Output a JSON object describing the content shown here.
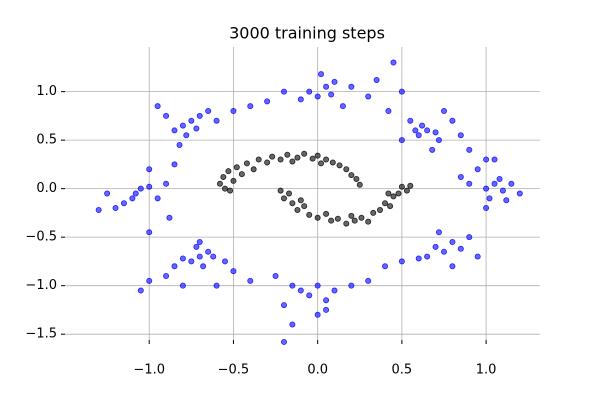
{
  "chart_data": {
    "type": "scatter",
    "title": "3000 training steps",
    "xlim": [
      -1.5,
      1.32
    ],
    "ylim": [
      -1.56,
      1.46
    ],
    "xticks": [
      {
        "value": -1,
        "label": "−1.0"
      },
      {
        "value": -0.5,
        "label": "−0.5"
      },
      {
        "value": 0,
        "label": "0.0"
      },
      0.5,
      {
        "value": 1,
        "label": "1.0"
      }
    ],
    "yticks": [
      {
        "value": -1.5,
        "label": "−1.5"
      },
      {
        "value": -1,
        "label": "−1.0"
      },
      {
        "value": -0.5,
        "label": "−0.5"
      },
      {
        "value": 0,
        "label": "0.0"
      },
      0.5,
      {
        "value": 1,
        "label": "1.0"
      }
    ],
    "grid": true,
    "series": [
      {
        "color": "#000000",
        "x": [
          -0.58,
          -0.56,
          -0.55,
          -0.53,
          -0.5,
          -0.48,
          -0.45,
          -0.42,
          -0.38,
          -0.35,
          -0.3,
          -0.27,
          -0.22,
          -0.18,
          -0.12,
          -0.08,
          -0.03,
          0.0,
          0.05,
          0.09,
          0.13,
          0.17,
          0.2,
          0.23,
          0.25,
          -0.52,
          -0.15,
          0.02,
          -0.22,
          -0.2,
          -0.17,
          -0.15,
          -0.12,
          -0.08,
          -0.05,
          0.0,
          0.05,
          0.08,
          0.12,
          0.17,
          0.22,
          0.26,
          0.3,
          0.33,
          0.37,
          0.4,
          0.43,
          0.45,
          0.48,
          0.5,
          0.53,
          0.55,
          0.42,
          -0.1,
          0.2
        ],
        "values": [
          0.05,
          0.12,
          0.0,
          0.18,
          0.08,
          0.22,
          0.15,
          0.26,
          0.2,
          0.3,
          0.27,
          0.33,
          0.3,
          0.35,
          0.32,
          0.36,
          0.31,
          0.34,
          0.3,
          0.27,
          0.24,
          0.2,
          0.14,
          0.1,
          0.04,
          -0.02,
          0.28,
          0.26,
          -0.02,
          -0.1,
          -0.05,
          -0.15,
          -0.22,
          -0.18,
          -0.27,
          -0.3,
          -0.26,
          -0.33,
          -0.31,
          -0.36,
          -0.33,
          -0.3,
          -0.34,
          -0.25,
          -0.22,
          -0.15,
          -0.18,
          -0.08,
          -0.05,
          0.02,
          -0.02,
          0.03,
          -0.05,
          -0.12,
          -0.28
        ]
      },
      {
        "color": "#0000ff",
        "x": [
          -0.05,
          0.0,
          0.05,
          -0.1,
          0.1,
          0.02,
          -0.2,
          0.15,
          0.2,
          0.3,
          0.35,
          0.5,
          0.45,
          -0.3,
          0.08,
          0.6,
          0.65,
          0.7,
          0.62,
          0.58,
          0.72,
          0.55,
          0.75,
          0.8,
          0.85,
          0.5,
          0.68,
          0.9,
          0.42,
          1.0,
          1.05,
          1.1,
          1.08,
          1.02,
          1.15,
          0.95,
          1.0,
          0.9,
          1.12,
          1.2,
          0.85,
          1.0,
          1.05,
          0.7,
          0.75,
          0.8,
          0.65,
          0.85,
          0.9,
          0.6,
          0.5,
          0.72,
          0.95,
          0.4,
          0.8,
          -0.1,
          0.0,
          -0.05,
          0.05,
          -0.15,
          0.1,
          -0.2,
          0.0,
          -0.15,
          0.2,
          0.3,
          -0.25,
          -0.2,
          0.05,
          -0.7,
          -0.65,
          -0.72,
          -0.75,
          -0.68,
          -0.62,
          -0.8,
          -0.85,
          -0.55,
          -0.9,
          -1.0,
          -0.6,
          -0.8,
          -1.05,
          -0.5,
          -0.4,
          -0.7,
          -1.1,
          -1.05,
          -1.15,
          -1.08,
          -1.0,
          -1.2,
          -0.95,
          -0.9,
          -1.0,
          -1.3,
          -1.25,
          -0.88,
          -1.0,
          -0.85,
          -0.8,
          -0.75,
          -0.72,
          -0.85,
          -0.7,
          -0.78,
          -0.9,
          -0.95,
          -0.6,
          -0.5,
          -0.65,
          -0.82,
          -0.4
        ],
        "values": [
          1.0,
          0.95,
          1.05,
          0.92,
          1.1,
          1.18,
          1.0,
          0.85,
          1.05,
          0.95,
          1.12,
          1.0,
          1.3,
          0.9,
          0.97,
          0.55,
          0.6,
          0.58,
          0.65,
          0.6,
          0.5,
          0.7,
          0.8,
          0.7,
          0.55,
          0.5,
          0.4,
          0.4,
          0.8,
          0.0,
          0.05,
          -0.02,
          0.1,
          -0.1,
          0.05,
          0.2,
          0.3,
          0.05,
          -0.12,
          -0.05,
          0.12,
          -0.2,
          0.3,
          -0.6,
          -0.65,
          -0.55,
          -0.7,
          -0.62,
          -0.5,
          -0.72,
          -0.75,
          -0.45,
          -0.7,
          -0.8,
          -0.8,
          -1.05,
          -1.0,
          -1.1,
          -1.15,
          -1.0,
          -1.05,
          -1.2,
          -1.3,
          -1.4,
          -1.0,
          -0.95,
          -0.9,
          -1.58,
          -1.25,
          -0.7,
          -0.65,
          -0.6,
          -0.75,
          -0.8,
          -0.7,
          -0.72,
          -0.8,
          -0.75,
          -0.9,
          -0.95,
          -1.0,
          -1.0,
          -1.05,
          -0.85,
          -0.95,
          -0.55,
          -0.1,
          0.0,
          -0.15,
          -0.05,
          0.02,
          -0.2,
          -0.1,
          0.05,
          0.2,
          -0.22,
          -0.05,
          -0.3,
          -0.45,
          0.25,
          0.65,
          0.7,
          0.62,
          0.6,
          0.75,
          0.55,
          0.75,
          0.85,
          0.7,
          0.8,
          0.8,
          0.45,
          0.85
        ]
      }
    ]
  }
}
